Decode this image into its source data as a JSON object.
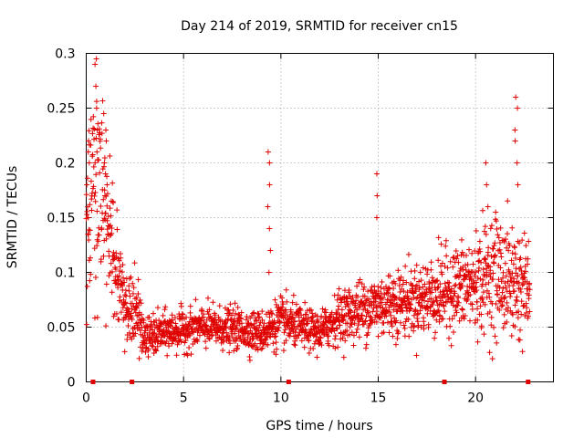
{
  "chart_data": {
    "type": "scatter",
    "title": "Day 214 of 2019, SRMTID for receiver cn15",
    "xlabel": "GPS time / hours",
    "ylabel": "SRMTID / TECUs",
    "xlim": [
      0,
      24
    ],
    "ylim": [
      0,
      0.3
    ],
    "xticks": [
      0,
      5,
      10,
      15,
      20
    ],
    "xtick_labels": [
      "0",
      "5",
      "10",
      "15",
      "20"
    ],
    "yticks": [
      0,
      0.05,
      0.1,
      0.15,
      0.2,
      0.25,
      0.3
    ],
    "ytick_labels": [
      "0",
      "0.05",
      "0.1",
      "0.15",
      "0.2",
      "0.25",
      "0.3"
    ],
    "grid": true,
    "point_color": "#e00000",
    "marker": "plus",
    "baseline_markers_x": [
      0.35,
      2.35,
      10.4,
      18.4,
      22.7
    ],
    "profile": [
      {
        "x": 0.0,
        "y": 0.14,
        "spread": 0.05
      },
      {
        "x": 0.5,
        "y": 0.19,
        "spread": 0.07
      },
      {
        "x": 1.0,
        "y": 0.15,
        "spread": 0.05
      },
      {
        "x": 1.5,
        "y": 0.1,
        "spread": 0.03
      },
      {
        "x": 2.0,
        "y": 0.07,
        "spread": 0.025
      },
      {
        "x": 2.6,
        "y": 0.06,
        "spread": 0.02
      },
      {
        "x": 3.0,
        "y": 0.04,
        "spread": 0.012
      },
      {
        "x": 4.0,
        "y": 0.045,
        "spread": 0.012
      },
      {
        "x": 6.0,
        "y": 0.05,
        "spread": 0.012
      },
      {
        "x": 8.0,
        "y": 0.048,
        "spread": 0.012
      },
      {
        "x": 9.0,
        "y": 0.045,
        "spread": 0.012
      },
      {
        "x": 10.0,
        "y": 0.055,
        "spread": 0.015
      },
      {
        "x": 11.0,
        "y": 0.05,
        "spread": 0.012
      },
      {
        "x": 12.0,
        "y": 0.045,
        "spread": 0.012
      },
      {
        "x": 13.0,
        "y": 0.06,
        "spread": 0.015
      },
      {
        "x": 15.0,
        "y": 0.07,
        "spread": 0.02
      },
      {
        "x": 17.0,
        "y": 0.075,
        "spread": 0.02
      },
      {
        "x": 18.0,
        "y": 0.08,
        "spread": 0.025
      },
      {
        "x": 19.0,
        "y": 0.085,
        "spread": 0.025
      },
      {
        "x": 20.0,
        "y": 0.09,
        "spread": 0.03
      },
      {
        "x": 21.0,
        "y": 0.1,
        "spread": 0.035
      },
      {
        "x": 22.0,
        "y": 0.09,
        "spread": 0.035
      },
      {
        "x": 22.8,
        "y": 0.085,
        "spread": 0.03
      }
    ],
    "points_per_hour": 90,
    "x_end": 22.8,
    "spikes": [
      {
        "x": 0.1,
        "values": [
          0.22,
          0.21,
          0.2,
          0.18
        ]
      },
      {
        "x": 0.5,
        "values": [
          0.29,
          0.27,
          0.25,
          0.23,
          0.21
        ]
      },
      {
        "x": 1.0,
        "values": [
          0.23,
          0.22,
          0.2,
          0.18,
          0.17
        ]
      },
      {
        "x": 9.4,
        "values": [
          0.21,
          0.2,
          0.18,
          0.16,
          0.14,
          0.12,
          0.1
        ]
      },
      {
        "x": 15.0,
        "values": [
          0.19,
          0.17,
          0.15
        ]
      },
      {
        "x": 20.6,
        "values": [
          0.2,
          0.18,
          0.16
        ]
      },
      {
        "x": 22.1,
        "values": [
          0.26,
          0.25,
          0.23,
          0.22,
          0.2,
          0.18
        ]
      }
    ]
  }
}
